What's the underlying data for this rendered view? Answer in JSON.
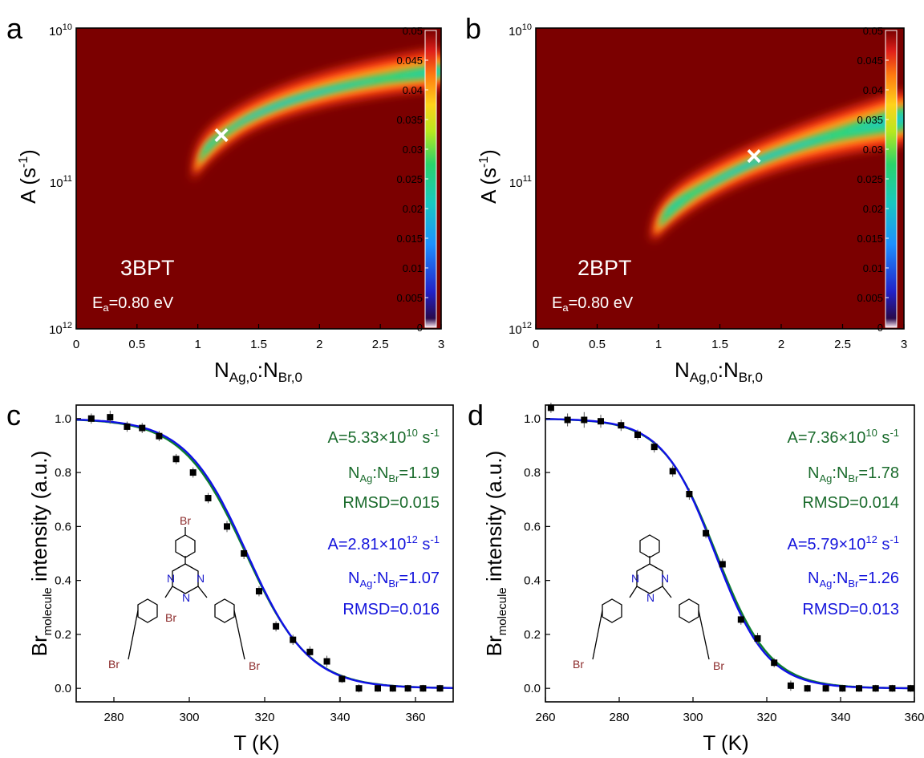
{
  "panels": {
    "a": "a",
    "b": "b",
    "c": "c",
    "d": "d"
  },
  "colors": {
    "background_map": "#7b0000",
    "green_fit": "#0e7d2f",
    "blue_fit": "#1010e6",
    "text_green": "#1a6b2c",
    "text_blue": "#1414dc",
    "marker": "#000000",
    "bromine": "#8b2a2a",
    "nitrogen": "#1a1acc"
  },
  "chart_data": [
    {
      "type": "heatmap",
      "panel": "a",
      "xlabel": "N<sub>Ag,0</sub>:N<sub>Br,0</sub>",
      "xlabel_main": "N",
      "xlabel_sub1": "Ag,0",
      "xlabel_mid": ":N",
      "xlabel_sub2": "Br,0",
      "ylabel": "A (s⁻¹)",
      "ylabel_main": "A (s",
      "ylabel_sup": "-1",
      "ylabel_end": ")",
      "xlim": [
        0,
        3
      ],
      "x_ticks": [
        "0",
        "0.5",
        "1",
        "1.5",
        "2",
        "2.5",
        "3"
      ],
      "y_scale": "log",
      "y_ticks": [
        {
          "base": "10",
          "exp": "10"
        },
        {
          "base": "10",
          "exp": "11"
        },
        {
          "base": "10",
          "exp": "12"
        }
      ],
      "colorbar": {
        "min": 0,
        "max": 0.05,
        "ticks": [
          "0.05",
          "0.045",
          "0.04",
          "0.035",
          "0.03",
          "0.025",
          "0.02",
          "0.015",
          "0.01",
          "0.005",
          "0"
        ]
      },
      "marker": {
        "x": 1.19,
        "label": "×"
      },
      "label": "3BPT",
      "ea_prefix": "E",
      "ea_sub": "a",
      "ea_value": "=0.80 eV"
    },
    {
      "type": "heatmap",
      "panel": "b",
      "xlabel_main": "N",
      "xlabel_sub1": "Ag,0",
      "xlabel_mid": ":N",
      "xlabel_sub2": "Br,0",
      "ylabel_main": "A (s",
      "ylabel_sup": "-1",
      "ylabel_end": ")",
      "xlim": [
        0,
        3
      ],
      "x_ticks": [
        "0",
        "0.5",
        "1",
        "1.5",
        "2",
        "2.5",
        "3"
      ],
      "y_scale": "log",
      "y_ticks": [
        {
          "base": "10",
          "exp": "10"
        },
        {
          "base": "10",
          "exp": "11"
        },
        {
          "base": "10",
          "exp": "12"
        }
      ],
      "colorbar": {
        "min": 0,
        "max": 0.05,
        "ticks": [
          "0.05",
          "0.045",
          "0.04",
          "0.035",
          "0.03",
          "0.025",
          "0.02",
          "0.015",
          "0.01",
          "0.005",
          "0"
        ]
      },
      "marker": {
        "x": 1.78,
        "label": "×"
      },
      "label": "2BPT",
      "ea_prefix": "E",
      "ea_sub": "a",
      "ea_value": "=0.80 eV"
    },
    {
      "type": "scatter",
      "panel": "c",
      "xlabel": "T (K)",
      "ylabel_main": "Br",
      "ylabel_sub": "molecule",
      "ylabel_end": " intensity (a.u.)",
      "xlim": [
        270,
        370
      ],
      "ylim": [
        -0.05,
        1.05
      ],
      "x_ticks": [
        280,
        300,
        320,
        340,
        360
      ],
      "y_ticks": [
        "0.0",
        "0.2",
        "0.4",
        "0.6",
        "0.8",
        "1.0"
      ],
      "points": [
        {
          "x": 274,
          "y": 1.0,
          "err": 0.01
        },
        {
          "x": 279,
          "y": 1.005,
          "err": 0.015
        },
        {
          "x": 283.5,
          "y": 0.97,
          "err": 0.01
        },
        {
          "x": 287.5,
          "y": 0.965,
          "err": 0.01
        },
        {
          "x": 292,
          "y": 0.935,
          "err": 0.01
        },
        {
          "x": 296.5,
          "y": 0.85,
          "err": 0.01
        },
        {
          "x": 301,
          "y": 0.8,
          "err": 0.01
        },
        {
          "x": 305,
          "y": 0.705,
          "err": 0.01
        },
        {
          "x": 310,
          "y": 0.6,
          "err": 0.012
        },
        {
          "x": 314.5,
          "y": 0.5,
          "err": 0.012
        },
        {
          "x": 318.5,
          "y": 0.36,
          "err": 0.01
        },
        {
          "x": 323,
          "y": 0.23,
          "err": 0.01
        },
        {
          "x": 327.5,
          "y": 0.18,
          "err": 0.01
        },
        {
          "x": 332,
          "y": 0.135,
          "err": 0.012
        },
        {
          "x": 336.5,
          "y": 0.1,
          "err": 0.012
        },
        {
          "x": 340.5,
          "y": 0.035,
          "err": 0.006
        },
        {
          "x": 345,
          "y": 0.0,
          "err": 0.006
        },
        {
          "x": 350,
          "y": 0.0,
          "err": 0.004
        },
        {
          "x": 354,
          "y": 0.0,
          "err": 0.004
        },
        {
          "x": 358,
          "y": 0.0,
          "err": 0.004
        },
        {
          "x": 362,
          "y": 0.0,
          "err": 0.004
        },
        {
          "x": 366.5,
          "y": 0.0,
          "err": 0.004
        }
      ],
      "series": [
        {
          "name": "A=5.33×10¹⁰ s⁻¹ fit",
          "color": "#0e7d2f",
          "t_half": 315.0,
          "width": 8.4
        },
        {
          "name": "A=2.81×10¹² s⁻¹ fit",
          "color": "#1010e6",
          "t_half": 315.3,
          "width": 8.2
        }
      ],
      "annotations": {
        "green": {
          "a_prefix": "A=5.33×10",
          "a_exp": "10",
          "a_suffix": " s",
          "a_unit_exp": "-1",
          "n1": "N",
          "n1_sub": "Ag",
          "n2": ":N",
          "n2_sub": "Br",
          "n_value": "=1.19",
          "rmsd": "RMSD=0.015"
        },
        "blue": {
          "a_prefix": "A=2.81×10",
          "a_exp": "12",
          "a_suffix": " s",
          "a_unit_exp": "-1",
          "n1": "N",
          "n1_sub": "Ag",
          "n2": ":N",
          "n2_sub": "Br",
          "n_value": "=1.07",
          "rmsd": "RMSD=0.016"
        }
      },
      "molecule": {
        "br": "Br",
        "n": "N",
        "bromines": 3
      }
    },
    {
      "type": "scatter",
      "panel": "d",
      "xlabel": "T (K)",
      "ylabel_main": "Br",
      "ylabel_sub": "molecule",
      "ylabel_end": " intensity (a.u.)",
      "xlim": [
        260,
        360
      ],
      "ylim": [
        -0.05,
        1.05
      ],
      "x_ticks": [
        260,
        280,
        300,
        320,
        340,
        360
      ],
      "y_ticks": [
        "0.0",
        "0.2",
        "0.4",
        "0.6",
        "0.8",
        "1.0"
      ],
      "points": [
        {
          "x": 261.5,
          "y": 1.04,
          "err": 0.01
        },
        {
          "x": 266,
          "y": 0.995,
          "err": 0.015
        },
        {
          "x": 270.5,
          "y": 0.995,
          "err": 0.02
        },
        {
          "x": 275,
          "y": 0.99,
          "err": 0.015
        },
        {
          "x": 280.5,
          "y": 0.975,
          "err": 0.012
        },
        {
          "x": 285,
          "y": 0.94,
          "err": 0.01
        },
        {
          "x": 289.5,
          "y": 0.895,
          "err": 0.012
        },
        {
          "x": 294.5,
          "y": 0.805,
          "err": 0.012
        },
        {
          "x": 299,
          "y": 0.72,
          "err": 0.012
        },
        {
          "x": 303.5,
          "y": 0.575,
          "err": 0.01
        },
        {
          "x": 308,
          "y": 0.46,
          "err": 0.012
        },
        {
          "x": 313,
          "y": 0.255,
          "err": 0.01
        },
        {
          "x": 317.5,
          "y": 0.185,
          "err": 0.012
        },
        {
          "x": 322,
          "y": 0.095,
          "err": 0.008
        },
        {
          "x": 326.5,
          "y": 0.01,
          "err": 0.01
        },
        {
          "x": 331,
          "y": 0.0,
          "err": 0.004
        },
        {
          "x": 336,
          "y": 0.0,
          "err": 0.004
        },
        {
          "x": 340.5,
          "y": 0.0,
          "err": 0.004
        },
        {
          "x": 345,
          "y": 0.0,
          "err": 0.004
        },
        {
          "x": 349.5,
          "y": 0.0,
          "err": 0.004
        },
        {
          "x": 354,
          "y": 0.0,
          "err": 0.004
        },
        {
          "x": 359,
          "y": 0.0,
          "err": 0.004
        }
      ],
      "series": [
        {
          "name": "A=7.36×10¹⁰ s⁻¹ fit",
          "color": "#0e7d2f",
          "t_half": 306.3,
          "width": 7.3
        },
        {
          "name": "A=5.79×10¹² s⁻¹ fit",
          "color": "#1010e6",
          "t_half": 306.0,
          "width": 7.1
        }
      ],
      "annotations": {
        "green": {
          "a_prefix": "A=7.36×10",
          "a_exp": "10",
          "a_suffix": " s",
          "a_unit_exp": "-1",
          "n1": "N",
          "n1_sub": "Ag",
          "n2": ":N",
          "n2_sub": "Br",
          "n_value": "=1.78",
          "rmsd": "RMSD=0.014"
        },
        "blue": {
          "a_prefix": "A=5.79×10",
          "a_exp": "12",
          "a_suffix": " s",
          "a_unit_exp": "-1",
          "n1": "N",
          "n1_sub": "Ag",
          "n2": ":N",
          "n2_sub": "Br",
          "n_value": "=1.26",
          "rmsd": "RMSD=0.013"
        }
      },
      "molecule": {
        "br": "Br",
        "n": "N",
        "bromines": 2
      }
    }
  ]
}
